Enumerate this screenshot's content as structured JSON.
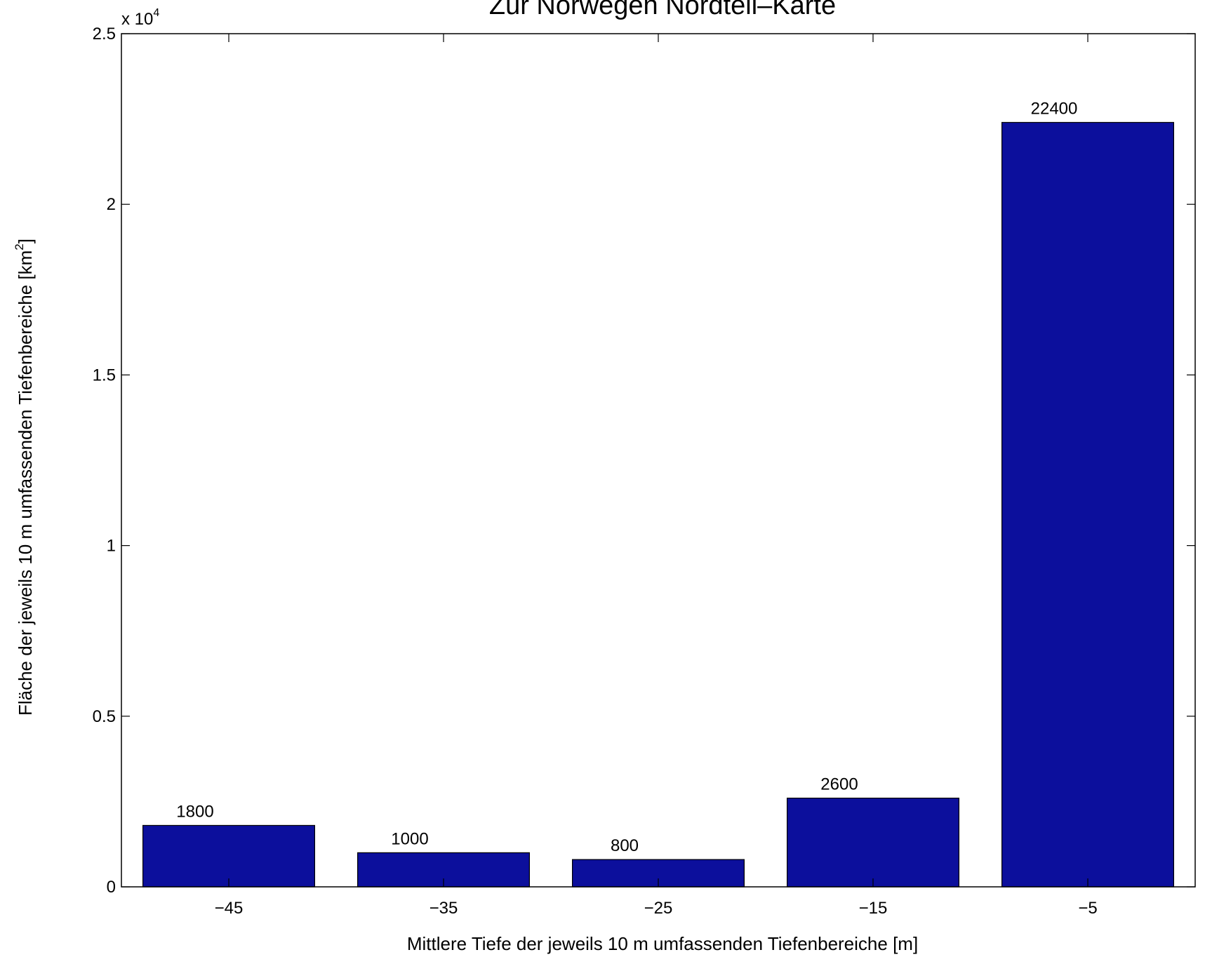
{
  "chart_data": {
    "type": "bar",
    "title": "Zur Norwegen Nordteil–Karte",
    "xlabel": "Mittlere Tiefe der jeweils 10 m umfassenden Tiefenbereiche [m]",
    "ylabel_main": "Fläche der jeweils 10 m umfassenden Tiefenbereiche [km",
    "ylabel_sup": "2",
    "ylabel_end": "]",
    "y_multiplier_base": "x 10",
    "y_multiplier_exp": "4",
    "categories": [
      "−45",
      "−35",
      "−25",
      "−15",
      "−5"
    ],
    "values": [
      1800,
      1000,
      800,
      2600,
      22400
    ],
    "data_labels": [
      "1800",
      "1000",
      "800",
      "2600",
      "22400"
    ],
    "ylim": [
      0,
      25000
    ],
    "yticks": [
      0,
      5000,
      10000,
      15000,
      20000,
      25000
    ],
    "ytick_labels": [
      "0",
      "0.5",
      "1",
      "1.5",
      "2",
      "2.5"
    ],
    "xlim": [
      -50,
      0
    ],
    "x_positions": [
      -45,
      -35,
      -25,
      -15,
      -5
    ],
    "bar_width": 8,
    "bar_color": "#0c0f9c",
    "grid": false,
    "legend": "none"
  }
}
